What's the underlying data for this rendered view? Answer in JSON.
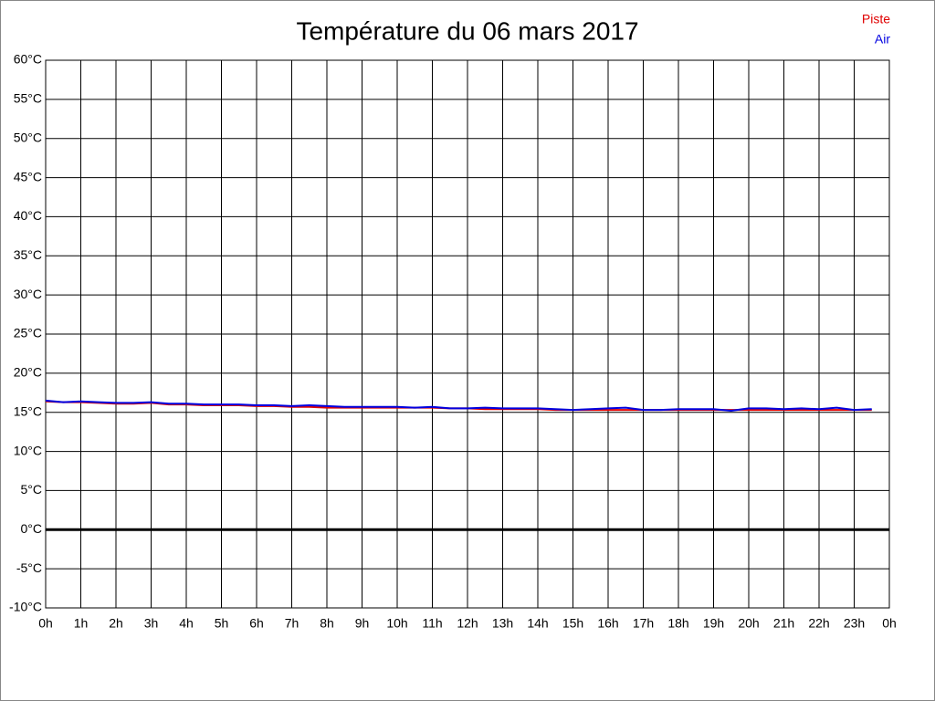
{
  "chart_data": {
    "type": "line",
    "title": "Température du 06 mars 2017",
    "x": [
      0,
      0.5,
      1,
      1.5,
      2,
      2.5,
      3,
      3.5,
      4,
      4.5,
      5,
      5.5,
      6,
      6.5,
      7,
      7.5,
      8,
      8.5,
      9,
      9.5,
      10,
      10.5,
      11,
      11.5,
      12,
      12.5,
      13,
      13.5,
      14,
      14.5,
      15,
      15.5,
      16,
      16.5,
      17,
      17.5,
      18,
      18.5,
      19,
      19.5,
      20,
      20.5,
      21,
      21.5,
      22,
      22.5,
      23,
      23.5
    ],
    "series": [
      {
        "name": "Piste",
        "color": "#e00000",
        "values": [
          16.4,
          16.3,
          16.3,
          16.2,
          16.1,
          16.1,
          16.2,
          16.0,
          16.0,
          15.9,
          15.9,
          15.9,
          15.8,
          15.8,
          15.7,
          15.7,
          15.6,
          15.6,
          15.6,
          15.6,
          15.6,
          15.6,
          15.6,
          15.5,
          15.5,
          15.4,
          15.4,
          15.4,
          15.4,
          15.3,
          15.3,
          15.3,
          15.3,
          15.3,
          15.3,
          15.3,
          15.3,
          15.3,
          15.3,
          15.3,
          15.3,
          15.3,
          15.3,
          15.3,
          15.3,
          15.3,
          15.3,
          15.3
        ]
      },
      {
        "name": "Air",
        "color": "#0000e0",
        "values": [
          16.5,
          16.3,
          16.4,
          16.3,
          16.2,
          16.2,
          16.3,
          16.1,
          16.1,
          16.0,
          16.0,
          16.0,
          15.9,
          15.9,
          15.8,
          15.9,
          15.8,
          15.7,
          15.7,
          15.7,
          15.7,
          15.6,
          15.7,
          15.5,
          15.5,
          15.6,
          15.5,
          15.5,
          15.5,
          15.4,
          15.3,
          15.4,
          15.5,
          15.6,
          15.3,
          15.3,
          15.4,
          15.4,
          15.4,
          15.2,
          15.5,
          15.5,
          15.4,
          15.5,
          15.4,
          15.6,
          15.3,
          15.4
        ]
      }
    ],
    "xlim": [
      0,
      24
    ],
    "xticks": [
      {
        "value": 0,
        "label": "0h"
      },
      {
        "value": 1,
        "label": "1h"
      },
      {
        "value": 2,
        "label": "2h"
      },
      {
        "value": 3,
        "label": "3h"
      },
      {
        "value": 4,
        "label": "4h"
      },
      {
        "value": 5,
        "label": "5h"
      },
      {
        "value": 6,
        "label": "6h"
      },
      {
        "value": 7,
        "label": "7h"
      },
      {
        "value": 8,
        "label": "8h"
      },
      {
        "value": 9,
        "label": "9h"
      },
      {
        "value": 10,
        "label": "10h"
      },
      {
        "value": 11,
        "label": "11h"
      },
      {
        "value": 12,
        "label": "12h"
      },
      {
        "value": 13,
        "label": "13h"
      },
      {
        "value": 14,
        "label": "14h"
      },
      {
        "value": 15,
        "label": "15h"
      },
      {
        "value": 16,
        "label": "16h"
      },
      {
        "value": 17,
        "label": "17h"
      },
      {
        "value": 18,
        "label": "18h"
      },
      {
        "value": 19,
        "label": "19h"
      },
      {
        "value": 20,
        "label": "20h"
      },
      {
        "value": 21,
        "label": "21h"
      },
      {
        "value": 22,
        "label": "22h"
      },
      {
        "value": 23,
        "label": "23h"
      },
      {
        "value": 24,
        "label": "0h"
      }
    ],
    "ylim": [
      -10,
      60
    ],
    "yticks": [
      {
        "value": -10,
        "label": "-10°C"
      },
      {
        "value": -5,
        "label": "-5°C"
      },
      {
        "value": 0,
        "label": "0°C"
      },
      {
        "value": 5,
        "label": "5°C"
      },
      {
        "value": 10,
        "label": "10°C"
      },
      {
        "value": 15,
        "label": "15°C"
      },
      {
        "value": 20,
        "label": "20°C"
      },
      {
        "value": 25,
        "label": "25°C"
      },
      {
        "value": 30,
        "label": "30°C"
      },
      {
        "value": 35,
        "label": "35°C"
      },
      {
        "value": 40,
        "label": "40°C"
      },
      {
        "value": 45,
        "label": "45°C"
      },
      {
        "value": 50,
        "label": "50°C"
      },
      {
        "value": 55,
        "label": "55°C"
      },
      {
        "value": 60,
        "label": "60°C"
      }
    ],
    "grid": true,
    "zero_line": true,
    "legend": "top-right"
  }
}
